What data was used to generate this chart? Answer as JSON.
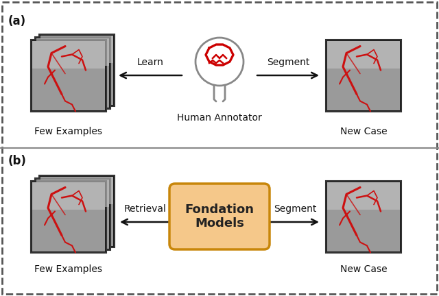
{
  "background_color": "#ffffff",
  "border_color": "#333333",
  "panel_a_label": "(a)",
  "panel_b_label": "(b)",
  "few_examples_label": "Few Examples",
  "new_case_label": "New Case",
  "human_annotator_label": "Human Annotator",
  "foundation_models_label": "Fondation\nModels",
  "learn_label": "Learn",
  "segment_label_a": "Segment",
  "retrieval_label": "Retrieval",
  "segment_label_b": "Segment",
  "head_color": "#888888",
  "brain_color": "#cc0000",
  "box_fill": "#f5c88a",
  "box_edge": "#c8860a",
  "arrow_color": "#111111",
  "image_bg": "#888888",
  "vessel_color": "#cc1111",
  "dashed_border": "#555555",
  "text_color": "#111111"
}
